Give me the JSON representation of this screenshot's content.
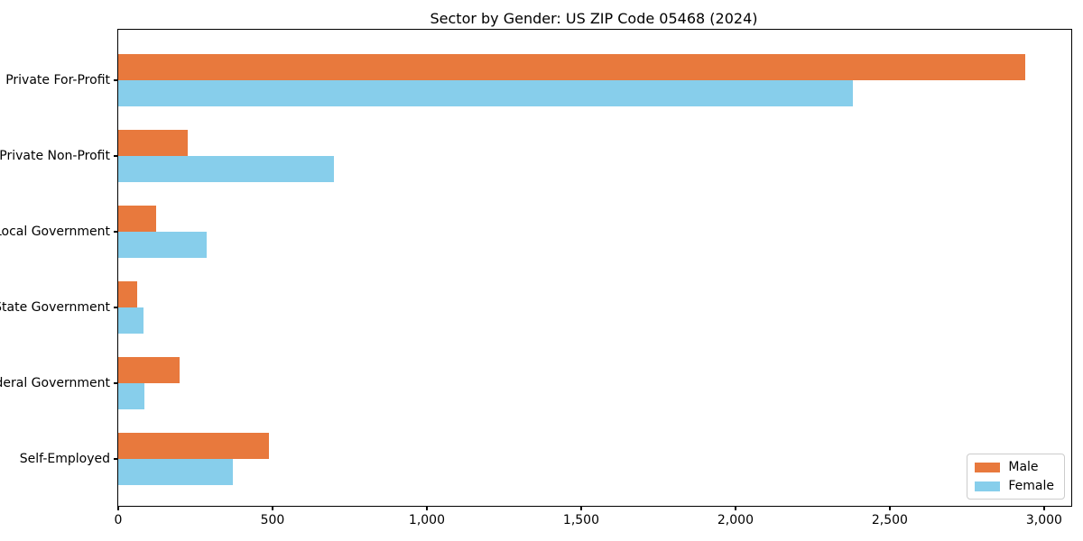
{
  "chart_data": {
    "type": "bar",
    "orientation": "horizontal",
    "title": "Sector by Gender: US ZIP Code 05468 (2024)",
    "categories": [
      "Private For-Profit",
      "Private Non-Profit",
      "Local Government",
      "State Government",
      "Federal Government",
      "Self-Employed"
    ],
    "series": [
      {
        "name": "Male",
        "color": "#E8793D",
        "values": [
          2940,
          225,
          122,
          60,
          199,
          488
        ]
      },
      {
        "name": "Female",
        "color": "#87CEEB",
        "values": [
          2380,
          698,
          287,
          83,
          86,
          371
        ]
      }
    ],
    "xlabel": "",
    "ylabel": "",
    "xlim": [
      0,
      3088
    ],
    "xticks": [
      0,
      500,
      1000,
      1500,
      2000,
      2500,
      3000
    ],
    "xtick_labels": [
      "0",
      "500",
      "1,000",
      "1,500",
      "2,000",
      "2,500",
      "3,000"
    ],
    "grid": false,
    "legend": {
      "position": "lower right"
    }
  }
}
